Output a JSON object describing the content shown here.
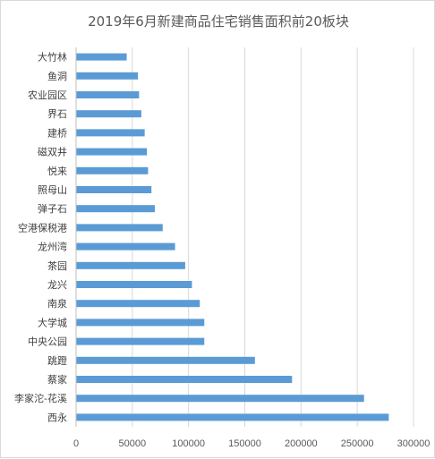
{
  "chart_data": {
    "type": "bar",
    "orientation": "horizontal",
    "title": "2019年6月新建商品住宅销售面积前20板块",
    "xlabel": "",
    "ylabel": "",
    "categories": [
      "大竹林",
      "鱼洞",
      "农业园区",
      "界石",
      "建桥",
      "磁双井",
      "悦来",
      "照母山",
      "弹子石",
      "空港保税港",
      "龙州湾",
      "茶园",
      "龙兴",
      "南泉",
      "大学城",
      "中央公园",
      "跳蹬",
      "蔡家",
      "李家沱-花溪",
      "西永"
    ],
    "values": [
      45000,
      55000,
      56000,
      58000,
      61000,
      63000,
      64000,
      67000,
      70000,
      77000,
      88000,
      97000,
      103000,
      110000,
      114000,
      114000,
      159000,
      192000,
      256000,
      278000
    ],
    "xlim": [
      0,
      300000
    ],
    "xticks": [
      0,
      50000,
      100000,
      150000,
      200000,
      250000,
      300000
    ],
    "xtick_labels": [
      "0",
      "50000",
      "100000",
      "150000",
      "200000",
      "250000",
      "300000"
    ],
    "grid": true,
    "legend": "none",
    "bar_color": "#5b9bd5"
  }
}
